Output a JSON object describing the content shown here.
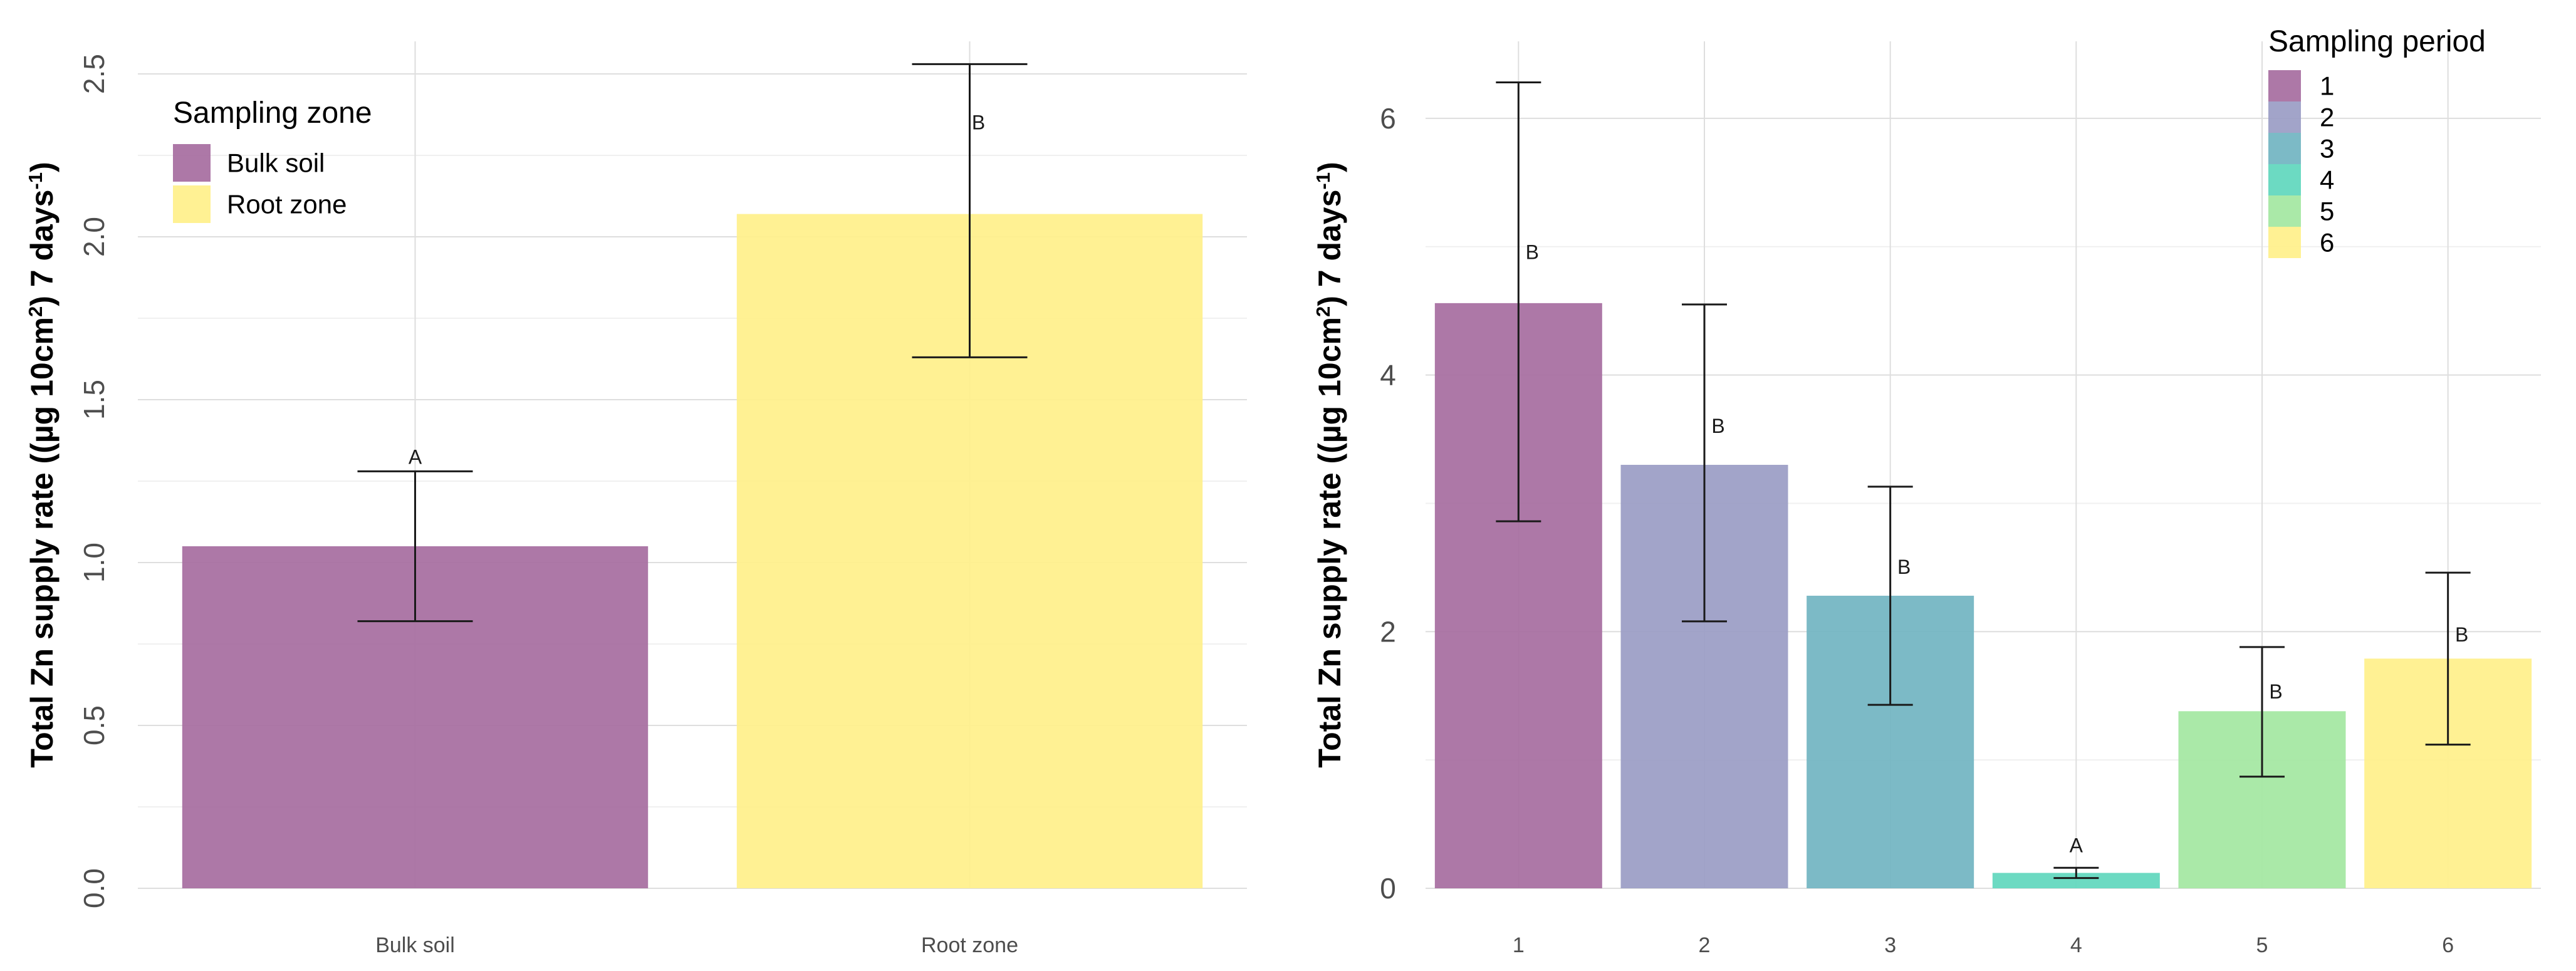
{
  "chart_data": [
    {
      "type": "bar",
      "title": "",
      "xlabel": "",
      "ylabel": "Total Zn supply rate ((µg 10cm",
      "ylabel_sup1": "2",
      "ylabel_mid": ") 7 days",
      "ylabel_sup2": "-1",
      "ylabel_end": ")",
      "ylim": [
        0,
        2.6
      ],
      "yticks": [
        0.0,
        0.5,
        1.0,
        1.5,
        2.0,
        2.5
      ],
      "ytick_labels": [
        "0.0",
        "0.5",
        "1.0",
        "1.5",
        "2.0",
        "2.5"
      ],
      "grid": true,
      "categories": [
        "Bulk soil",
        "Root zone"
      ],
      "values": [
        1.05,
        2.07
      ],
      "error_low": [
        0.82,
        1.63
      ],
      "error_high": [
        1.28,
        2.53
      ],
      "significance": [
        "A",
        "B"
      ],
      "colors": [
        "#a66c9f",
        "#fff08a"
      ],
      "legend": {
        "title": "Sampling zone",
        "position": "top-left",
        "entries": [
          "Bulk soil",
          "Root zone"
        ]
      }
    },
    {
      "type": "bar",
      "title": "",
      "xlabel": "",
      "ylabel": "Total Zn supply rate ((µg 10cm",
      "ylabel_sup1": "2",
      "ylabel_mid": ") 7 days",
      "ylabel_sup2": "-1",
      "ylabel_end": ")",
      "ylim": [
        0,
        6.6
      ],
      "yticks": [
        0,
        2,
        4,
        6
      ],
      "ytick_labels": [
        "0",
        "2",
        "4",
        "6"
      ],
      "grid": true,
      "categories": [
        "1",
        "2",
        "3",
        "4",
        "5",
        "6"
      ],
      "values": [
        4.56,
        3.3,
        2.28,
        0.12,
        1.38,
        1.79
      ],
      "error_low": [
        2.86,
        2.08,
        1.43,
        0.08,
        0.87,
        1.12
      ],
      "error_high": [
        6.28,
        4.55,
        3.13,
        0.16,
        1.88,
        2.46
      ],
      "significance": [
        "B",
        "B",
        "B",
        "A",
        "B",
        "B"
      ],
      "colors": [
        "#a66c9f",
        "#9a9cc4",
        "#71b4c1",
        "#5fd7bd",
        "#a3e7a1",
        "#fff08a"
      ],
      "legend": {
        "title": "Sampling period",
        "position": "top-right",
        "entries": [
          "1",
          "2",
          "3",
          "4",
          "5",
          "6"
        ]
      }
    }
  ]
}
